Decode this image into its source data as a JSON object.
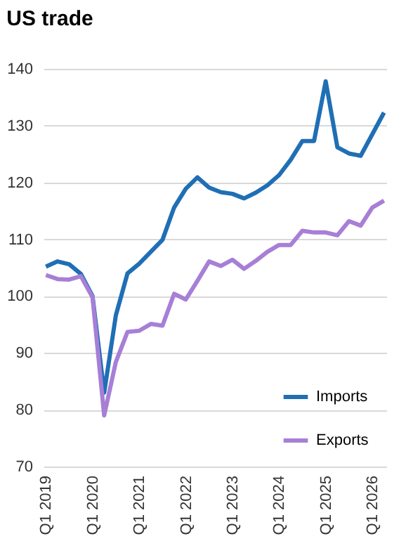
{
  "chart_data": {
    "type": "line",
    "title": "US trade",
    "categories": [
      "Q1 2019",
      null,
      null,
      null,
      "Q1 2020",
      null,
      null,
      null,
      "Q1 2021",
      null,
      null,
      null,
      "Q1 2022",
      null,
      null,
      null,
      "Q1 2023",
      null,
      null,
      null,
      "Q1 2024",
      null,
      null,
      null,
      "Q1 2025",
      null,
      null,
      null,
      "Q1 2026",
      null
    ],
    "series": [
      {
        "name": "Imports",
        "color": "#1f6fb5",
        "values": [
          105.2,
          106.1,
          105.6,
          103.9,
          100,
          83,
          96.6,
          104,
          105.7,
          107.8,
          109.9,
          115.6,
          118.9,
          120.9,
          119.1,
          118.3,
          118,
          117.2,
          118.2,
          119.5,
          121.3,
          124,
          127.3,
          127.3,
          137.8,
          126.2,
          125.1,
          124.7,
          128.5,
          132.3
        ]
      },
      {
        "name": "Exports",
        "color": "#a77fd6",
        "values": [
          103.7,
          103,
          102.9,
          103.5,
          99.8,
          79,
          88.4,
          93.7,
          93.9,
          95.1,
          94.8,
          100.4,
          99.4,
          102.7,
          106.1,
          105.3,
          106.4,
          104.8,
          106.2,
          107.8,
          109,
          109,
          111.5,
          111.2,
          111.2,
          110.7,
          113.2,
          112.4,
          115.6,
          116.8
        ]
      }
    ],
    "ylim": [
      70,
      140
    ],
    "yticks": [
      70,
      80,
      90,
      100,
      110,
      120,
      130,
      140
    ],
    "grid": "y",
    "legend": "bottom right",
    "line_style": "solid"
  }
}
